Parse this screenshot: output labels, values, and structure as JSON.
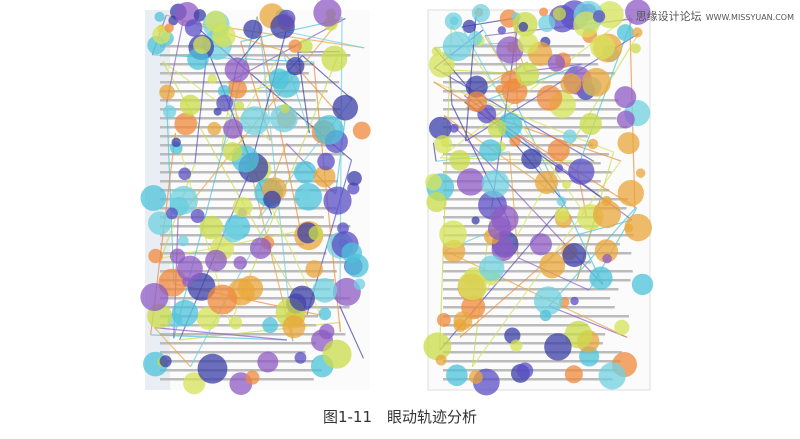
{
  "figure": {
    "caption": "图1-11　眼动轨迹分析"
  },
  "watermark": {
    "site": "思缘设计论坛",
    "url": "WWW.MISSYUAN.COM"
  }
}
